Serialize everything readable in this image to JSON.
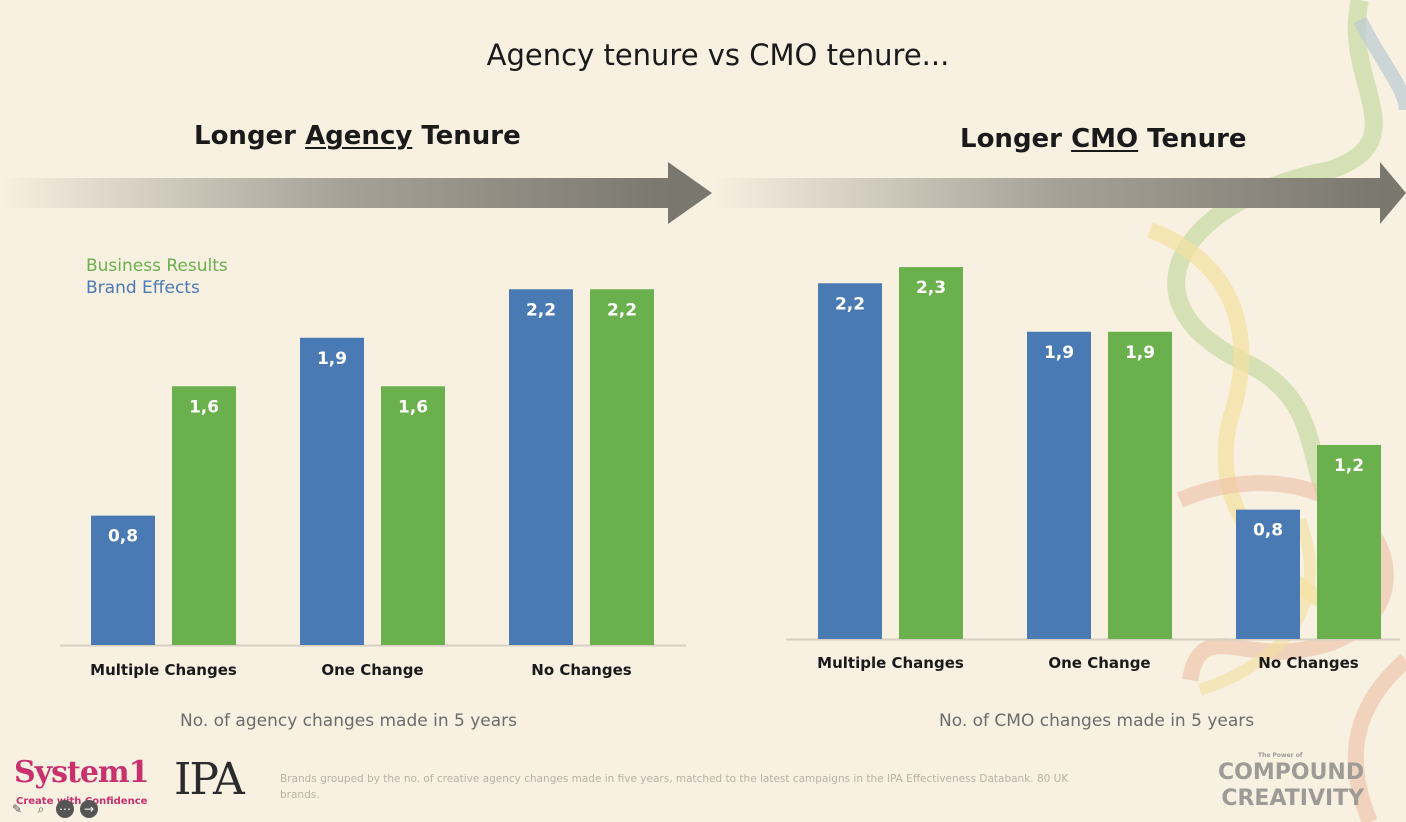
{
  "slide": {
    "title": "Agency tenure vs CMO tenure...",
    "footnote": "Brands grouped by the no. of creative agency changes made in five years, matched to the latest campaigns in the IPA Effectiveness Databank. 80 UK brands."
  },
  "left_heading": {
    "before": "Longer ",
    "underlined": "Agency",
    "after": " Tenure"
  },
  "right_heading": {
    "before": "Longer ",
    "underlined": "CMO",
    "after": " Tenure"
  },
  "legend": {
    "business": "Business Results",
    "brand": "Brand Effects"
  },
  "colors": {
    "brand": "#4a7ab3",
    "business": "#6ab04c",
    "arrow": "#7a776f",
    "background": "#f8f0e1"
  },
  "logos": {
    "system1": "System1",
    "system1_tagline": "Create with Confidence",
    "ipa": "IPA",
    "compound_small": "The Power of",
    "compound_line1": "COMPOUND",
    "compound_line2": "CREATIVITY"
  },
  "toolbar": {
    "icons": [
      "pencil-icon",
      "search-icon",
      "more-icon",
      "next-icon"
    ]
  },
  "chart_data": [
    {
      "type": "bar",
      "categories": [
        "Multiple Changes",
        "One Change",
        "No Changes"
      ],
      "series": [
        {
          "name": "Brand Effects",
          "values": [
            0.8,
            1.9,
            2.2
          ],
          "labels": [
            "0,8",
            "1,9",
            "2,2"
          ]
        },
        {
          "name": "Business Results",
          "values": [
            1.6,
            1.6,
            2.2
          ],
          "labels": [
            "1,6",
            "1,6",
            "2,2"
          ]
        }
      ],
      "xlabel": "No. of agency changes made in 5 years",
      "ylabel": "",
      "ylim": [
        0,
        2.35
      ],
      "legend": "top-left",
      "grid": false
    },
    {
      "type": "bar",
      "categories": [
        "Multiple Changes",
        "One Change",
        "No Changes"
      ],
      "series": [
        {
          "name": "Brand Effects",
          "values": [
            2.2,
            1.9,
            0.8
          ],
          "labels": [
            "2,2",
            "1,9",
            "0,8"
          ]
        },
        {
          "name": "Business Results",
          "values": [
            2.3,
            1.9,
            1.2
          ],
          "labels": [
            "2,3",
            "1,9",
            "1,2"
          ]
        }
      ],
      "xlabel": "No. of CMO changes made in 5 years",
      "ylabel": "",
      "ylim": [
        0,
        2.35
      ],
      "legend": "none",
      "grid": false
    }
  ]
}
